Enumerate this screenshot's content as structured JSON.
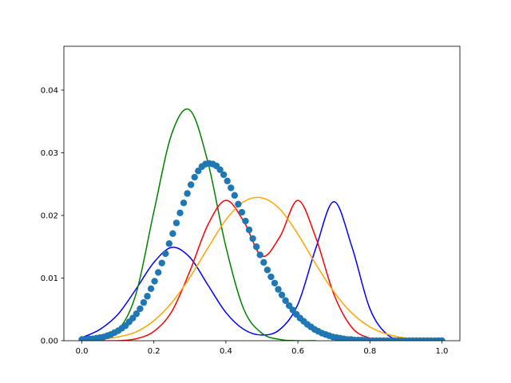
{
  "chart_data": {
    "type": "line",
    "title": "",
    "xlabel": "",
    "ylabel": "",
    "xlim": [
      -0.05,
      1.05
    ],
    "ylim": [
      0.0,
      0.047
    ],
    "grid": false,
    "x_ticks": [
      0.0,
      0.2,
      0.4,
      0.6,
      0.8,
      1.0
    ],
    "x_tick_labels": [
      "0.0",
      "0.2",
      "0.4",
      "0.6",
      "0.8",
      "1.0"
    ],
    "y_ticks": [
      0.0,
      0.01,
      0.02,
      0.03,
      0.04
    ],
    "y_tick_labels": [
      "0.00",
      "0.01",
      "0.02",
      "0.03",
      "0.04"
    ],
    "series": [
      {
        "kind": "scatter",
        "color": "#1f77b4",
        "x": [
          0.0,
          0.0101,
          0.0202,
          0.0303,
          0.0404,
          0.0505,
          0.0606,
          0.0707,
          0.0808,
          0.0909,
          0.101,
          0.1111,
          0.1212,
          0.1313,
          0.1414,
          0.1515,
          0.1616,
          0.1717,
          0.1818,
          0.1919,
          0.202,
          0.2121,
          0.2222,
          0.2323,
          0.2424,
          0.2525,
          0.2626,
          0.2727,
          0.2828,
          0.2929,
          0.303,
          0.3131,
          0.3232,
          0.3333,
          0.3434,
          0.3535,
          0.3636,
          0.3737,
          0.3838,
          0.3939,
          0.404,
          0.4141,
          0.4242,
          0.4343,
          0.4444,
          0.4545,
          0.4646,
          0.4747,
          0.4848,
          0.4949,
          0.5051,
          0.5152,
          0.5253,
          0.5354,
          0.5455,
          0.5556,
          0.5657,
          0.5758,
          0.5859,
          0.596,
          0.6061,
          0.6162,
          0.6263,
          0.6364,
          0.6465,
          0.6566,
          0.6667,
          0.6768,
          0.6869,
          0.697,
          0.7071,
          0.7172,
          0.7273,
          0.7374,
          0.7475,
          0.7576,
          0.7677,
          0.7778,
          0.7879,
          0.798,
          0.8081,
          0.8182,
          0.8283,
          0.8384,
          0.8485,
          0.8586,
          0.8687,
          0.8788,
          0.8889,
          0.899,
          0.9091,
          0.9192,
          0.9293,
          0.9394,
          0.9495,
          0.9596,
          0.9697,
          0.9798,
          0.9899,
          1.0
        ],
        "y": [
          0.0002,
          0.0002,
          0.0003,
          0.0003,
          0.0004,
          0.0005,
          0.0006,
          0.0008,
          0.001,
          0.0013,
          0.0016,
          0.002,
          0.0024,
          0.003,
          0.0036,
          0.0043,
          0.0051,
          0.0061,
          0.0071,
          0.0083,
          0.0095,
          0.0109,
          0.0124,
          0.0139,
          0.0155,
          0.0171,
          0.0188,
          0.0204,
          0.022,
          0.0235,
          0.0249,
          0.0261,
          0.0271,
          0.0278,
          0.0282,
          0.0283,
          0.0282,
          0.0279,
          0.0273,
          0.0265,
          0.0255,
          0.0244,
          0.0232,
          0.0218,
          0.0205,
          0.0191,
          0.0177,
          0.0163,
          0.015,
          0.0137,
          0.0125,
          0.0113,
          0.0102,
          0.0092,
          0.0082,
          0.0073,
          0.0064,
          0.0056,
          0.0049,
          0.0042,
          0.0036,
          0.0031,
          0.0026,
          0.0022,
          0.0018,
          0.0015,
          0.0012,
          0.001,
          0.0008,
          0.0006,
          0.0005,
          0.0004,
          0.0003,
          0.0002,
          0.0002,
          0.0001,
          0.0001,
          0.0001,
          0.0001,
          0.0,
          0.0,
          0.0,
          0.0,
          0.0,
          0.0,
          0.0,
          0.0,
          0.0,
          0.0,
          0.0,
          0.0,
          0.0,
          0.0,
          0.0,
          0.0,
          0.0,
          0.0,
          0.0,
          0.0,
          0.0
        ]
      },
      {
        "kind": "line",
        "color": "#0000ff",
        "x": [
          0.0,
          0.05,
          0.1,
          0.15,
          0.2,
          0.25,
          0.3,
          0.35,
          0.4,
          0.45,
          0.5,
          0.55,
          0.6,
          0.65,
          0.7,
          0.75,
          0.8,
          0.85,
          0.9,
          0.95,
          1.0
        ],
        "y": [
          0.0005,
          0.0018,
          0.0042,
          0.0082,
          0.0125,
          0.0149,
          0.0133,
          0.0089,
          0.0045,
          0.0018,
          0.0009,
          0.0018,
          0.0058,
          0.0148,
          0.0222,
          0.015,
          0.0051,
          0.0009,
          0.0001,
          0.0,
          0.0
        ]
      },
      {
        "kind": "line",
        "color": "#008000",
        "x": [
          0.0,
          0.05,
          0.1,
          0.15,
          0.2,
          0.25,
          0.3,
          0.35,
          0.4,
          0.45,
          0.5,
          0.55,
          0.6,
          0.65
        ],
        "y": [
          0.0,
          0.0002,
          0.0016,
          0.0074,
          0.0206,
          0.0331,
          0.0368,
          0.0285,
          0.015,
          0.005,
          0.0012,
          0.0002,
          0.0,
          0.0
        ]
      },
      {
        "kind": "line",
        "color": "#ff0000",
        "x": [
          0.0,
          0.05,
          0.1,
          0.15,
          0.2,
          0.25,
          0.3,
          0.35,
          0.4,
          0.45,
          0.5,
          0.55,
          0.6,
          0.65,
          0.7,
          0.75,
          0.8,
          0.85,
          0.9,
          0.95,
          1.0
        ],
        "y": [
          0.0,
          0.0,
          0.0,
          0.0003,
          0.0015,
          0.0047,
          0.0111,
          0.0185,
          0.0224,
          0.019,
          0.0135,
          0.0166,
          0.0224,
          0.0164,
          0.0074,
          0.0021,
          0.0004,
          0.0,
          0.0,
          0.0,
          0.0
        ]
      },
      {
        "kind": "line",
        "color": "#ffa500",
        "x": [
          0.0,
          0.05,
          0.1,
          0.15,
          0.2,
          0.25,
          0.3,
          0.35,
          0.4,
          0.45,
          0.5,
          0.55,
          0.6,
          0.65,
          0.7,
          0.75,
          0.8,
          0.85,
          0.9,
          0.95,
          1.0
        ],
        "y": [
          0.0,
          0.0002,
          0.0006,
          0.0014,
          0.0032,
          0.0061,
          0.0101,
          0.0148,
          0.0193,
          0.0222,
          0.0228,
          0.021,
          0.017,
          0.0122,
          0.0078,
          0.0044,
          0.0022,
          0.001,
          0.0004,
          0.0001,
          0.0
        ]
      }
    ]
  }
}
